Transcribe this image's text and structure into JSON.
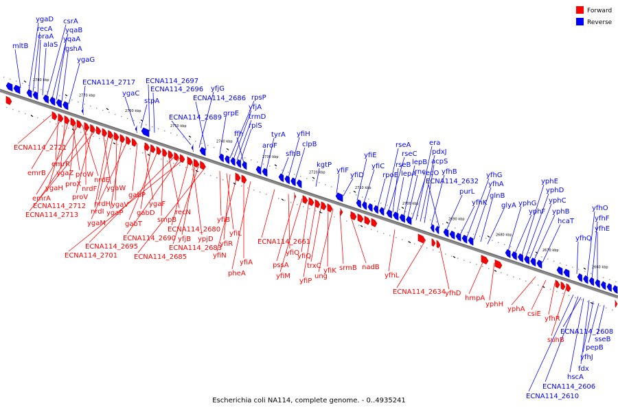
{
  "legend": {
    "forward_label": "Forward",
    "reverse_label": "Reverse",
    "forward_color": "#ff0000",
    "reverse_color": "#0000ff"
  },
  "caption": "Escherichia coli NA114, complete genome. - 0..4935241",
  "ticks": [
    "2780 kbp",
    "2770 kbp",
    "2760 kbp",
    "2750 kbp",
    "2740 kbp",
    "2730 kbp",
    "2720 kbp",
    "2710 kbp",
    "2700 kbp",
    "2690 kbp",
    "2680 kbp",
    "2670 kbp",
    "2660 kbp"
  ],
  "reverse_labels": [
    "mltB",
    "ygaD",
    "recA",
    "oraA",
    "alaS",
    "csrA",
    "yqaB",
    "yqaA",
    "gshA",
    "ygaG",
    "ECNA114_2717",
    "ygaC",
    "stpA",
    "ECNA114_2697",
    "ECNA114_2696",
    "ECNA114_2689",
    "yfjG",
    "ECNA114_2686",
    "grpE",
    "rpsP",
    "yfjA",
    "trmD",
    "rplS",
    "ffh",
    "aroF",
    "tyrA",
    "sfhB",
    "yfiH",
    "clpB",
    "kgtP",
    "yfiF",
    "yfiD",
    "yfiE",
    "yfiC",
    "rpoE",
    "rseA",
    "rseC",
    "rseB",
    "lepA",
    "lepB",
    "rnc",
    "recO",
    "era",
    "pdxJ",
    "acpS",
    "yfhB",
    "ECNA114_2632",
    "purL",
    "yfhK",
    "yfhG",
    "yfhA",
    "glnB",
    "glyA",
    "yphG",
    "yphF",
    "yphE",
    "yphD",
    "yphC",
    "yphB",
    "hcaT",
    "yfhQ",
    "yfhO",
    "yfhF",
    "yfhE",
    "sseB",
    "pepB",
    "yfhJ",
    "fdx",
    "hscA",
    "ECNA114_2606",
    "ECNA114_2610",
    "ECNA114_2608"
  ],
  "forward_labels": [
    "ECNA114_2721",
    "emrR",
    "emrB",
    "ygaZ",
    "ygaH",
    "proW",
    "proX",
    "emrA",
    "nrdE",
    "nrdF",
    "ECNA114_2712",
    "proV",
    "ECNA114_2713",
    "ygaW",
    "nrdI",
    "nrdH",
    "ygaV",
    "ygaP",
    "ygaM",
    "gabP",
    "ygaF",
    "gabD",
    "gabT",
    "smpB",
    "recN",
    "ECNA114_2695",
    "ECNA114_2690",
    "ECNA114_2701",
    "ECNA114_2680",
    "ypjD",
    "yfjB",
    "ECNA114_2683",
    "ECNA114_2685",
    "yfiB",
    "yfiL",
    "yfiR",
    "yfiN",
    "yfiA",
    "pheA",
    "ECNA114_2661",
    "yfiO",
    "pssA",
    "yfiM",
    "yfiQ",
    "yfiP",
    "trxC",
    "yfiK",
    "ung",
    "srmB",
    "nadB",
    "yfhL",
    "ECNA114_2634",
    "yfhD",
    "hmpA",
    "yphH",
    "yphA",
    "csiE",
    "yfhR",
    "suhB"
  ]
}
